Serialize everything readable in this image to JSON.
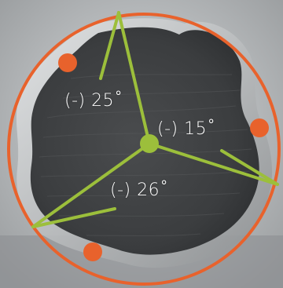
{
  "colors": {
    "circle": "#e8622c",
    "lines": "#9cbf3b",
    "center_dot": "#9cbf3b",
    "markers": "#e8622c",
    "label_text": "#ffffff"
  },
  "angle_labels": [
    {
      "id": "top",
      "text": "(-) 25˚"
    },
    {
      "id": "right",
      "text": "(-) 15˚"
    },
    {
      "id": "bottom",
      "text": "(-) 26˚"
    }
  ]
}
